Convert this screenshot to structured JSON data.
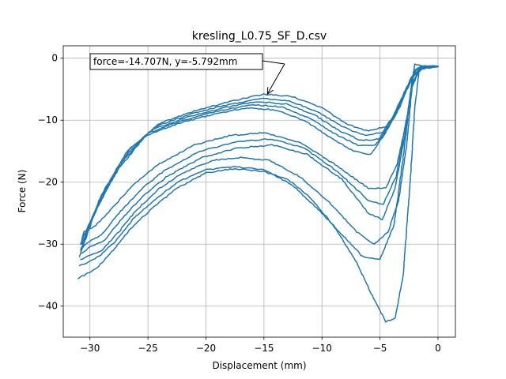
{
  "chart_data": {
    "type": "line",
    "title": "kresling_L0.75_SF_D.csv",
    "xlabel": "Displacement (mm)",
    "ylabel": "Force (N)",
    "xlim": [
      -32.3,
      1.5
    ],
    "ylim": [
      -45,
      2
    ],
    "xticks": [
      -30,
      -25,
      -20,
      -15,
      -10,
      -5,
      0
    ],
    "yticks": [
      0,
      -10,
      -20,
      -30,
      -40
    ],
    "grid": true,
    "color": "#1f77b4",
    "annotation": {
      "text": "force=-14.707N, y=-5.792mm",
      "point_x": -14.707,
      "point_y": -5.792
    },
    "series": [
      {
        "points": [
          [
            0,
            -1.3
          ],
          [
            -1,
            -1.3
          ],
          [
            -1.8,
            -1.6
          ],
          [
            -2.4,
            -3.5
          ],
          [
            -3.3,
            -8
          ],
          [
            -4.5,
            -11
          ],
          [
            -6,
            -11.8
          ],
          [
            -8,
            -10.5
          ],
          [
            -10,
            -8
          ],
          [
            -12.5,
            -6.2
          ],
          [
            -15,
            -5.8
          ],
          [
            -18,
            -7
          ],
          [
            -21,
            -8.5
          ],
          [
            -24,
            -10.5
          ],
          [
            -26.5,
            -14.5
          ],
          [
            -28.5,
            -21
          ],
          [
            -30.5,
            -28.5
          ],
          [
            -30.8,
            -30
          ]
        ]
      },
      {
        "points": [
          [
            -30.8,
            -30
          ],
          [
            -30.5,
            -28
          ],
          [
            -29.5,
            -27
          ],
          [
            -28,
            -24
          ],
          [
            -26,
            -20
          ],
          [
            -24,
            -17
          ],
          [
            -21,
            -14
          ],
          [
            -18,
            -12.5
          ],
          [
            -15,
            -12
          ],
          [
            -12,
            -13.5
          ],
          [
            -9,
            -17
          ],
          [
            -6,
            -21
          ],
          [
            -4.5,
            -21
          ],
          [
            -3.5,
            -17
          ],
          [
            -2.5,
            -8
          ],
          [
            -2,
            -1
          ],
          [
            -1.2,
            -1.3
          ],
          [
            0,
            -1.3
          ]
        ]
      },
      {
        "points": [
          [
            0,
            -1.3
          ],
          [
            -1.1,
            -1.4
          ],
          [
            -1.9,
            -2
          ],
          [
            -2.6,
            -4.5
          ],
          [
            -3.6,
            -9
          ],
          [
            -4.8,
            -12
          ],
          [
            -6.3,
            -12.5
          ],
          [
            -8.3,
            -11
          ],
          [
            -10.3,
            -8.7
          ],
          [
            -12.8,
            -6.9
          ],
          [
            -15.3,
            -6.5
          ],
          [
            -18.3,
            -7.6
          ],
          [
            -21.3,
            -9
          ],
          [
            -24.3,
            -11
          ],
          [
            -26.8,
            -15
          ],
          [
            -28.8,
            -21.5
          ],
          [
            -30.6,
            -29
          ]
        ]
      },
      {
        "points": [
          [
            -30.6,
            -30.5
          ],
          [
            -30,
            -29.5
          ],
          [
            -29,
            -28.5
          ],
          [
            -27.5,
            -25
          ],
          [
            -25.5,
            -21
          ],
          [
            -23.5,
            -18
          ],
          [
            -20.5,
            -15
          ],
          [
            -17.5,
            -13.5
          ],
          [
            -14.5,
            -13
          ],
          [
            -11.5,
            -14.5
          ],
          [
            -8.5,
            -18.5
          ],
          [
            -6,
            -23
          ],
          [
            -4.7,
            -23.5
          ],
          [
            -3.6,
            -19
          ],
          [
            -2.7,
            -10
          ],
          [
            -2.1,
            -2
          ],
          [
            -1.3,
            -1.3
          ],
          [
            0,
            -1.3
          ]
        ]
      },
      {
        "points": [
          [
            0,
            -1.3
          ],
          [
            -1.2,
            -1.5
          ],
          [
            -2,
            -2.5
          ],
          [
            -2.8,
            -5.5
          ],
          [
            -3.9,
            -10
          ],
          [
            -5.1,
            -13
          ],
          [
            -6.6,
            -13.3
          ],
          [
            -8.6,
            -11.6
          ],
          [
            -10.6,
            -9.2
          ],
          [
            -13.1,
            -7.4
          ],
          [
            -15.6,
            -7
          ],
          [
            -18.6,
            -8
          ],
          [
            -21.6,
            -9.5
          ],
          [
            -24.6,
            -11.5
          ],
          [
            -27.1,
            -16
          ],
          [
            -29,
            -22
          ],
          [
            -30.7,
            -30
          ]
        ]
      },
      {
        "points": [
          [
            -30.7,
            -31.5
          ],
          [
            -30,
            -30.5
          ],
          [
            -28.8,
            -29.5
          ],
          [
            -27.3,
            -26
          ],
          [
            -25.3,
            -22
          ],
          [
            -23.3,
            -19
          ],
          [
            -20.3,
            -16
          ],
          [
            -17.3,
            -14.5
          ],
          [
            -14.3,
            -14
          ],
          [
            -11.3,
            -15.5
          ],
          [
            -8.3,
            -19.5
          ],
          [
            -6,
            -25
          ],
          [
            -4.8,
            -26
          ],
          [
            -3.7,
            -21
          ],
          [
            -2.8,
            -12
          ],
          [
            -2.2,
            -3
          ],
          [
            -1.4,
            -1.3
          ],
          [
            0,
            -1.3
          ]
        ]
      },
      {
        "points": [
          [
            0,
            -1.3
          ],
          [
            -1.3,
            -1.6
          ],
          [
            -2.2,
            -3
          ],
          [
            -3.1,
            -6.5
          ],
          [
            -4.2,
            -11
          ],
          [
            -5.4,
            -14
          ],
          [
            -6.9,
            -14
          ],
          [
            -8.9,
            -12.2
          ],
          [
            -10.9,
            -9.8
          ],
          [
            -13.4,
            -7.9
          ],
          [
            -15.9,
            -7.5
          ],
          [
            -18.9,
            -8.5
          ],
          [
            -21.9,
            -10
          ],
          [
            -24.9,
            -12
          ],
          [
            -27.4,
            -17
          ],
          [
            -29.2,
            -23
          ],
          [
            -30.8,
            -31
          ]
        ]
      },
      {
        "points": [
          [
            -30.8,
            -32.5
          ],
          [
            -30.2,
            -32
          ],
          [
            -29,
            -31
          ],
          [
            -27.5,
            -28
          ],
          [
            -26,
            -24.5
          ],
          [
            -24,
            -21
          ],
          [
            -22,
            -18.5
          ],
          [
            -19.5,
            -16.5
          ],
          [
            -17,
            -16
          ],
          [
            -14.5,
            -16.5
          ],
          [
            -12,
            -19
          ],
          [
            -9.5,
            -23
          ],
          [
            -7,
            -28
          ],
          [
            -5.5,
            -30
          ],
          [
            -4.3,
            -28
          ],
          [
            -3.4,
            -23
          ],
          [
            -2.7,
            -14
          ],
          [
            -2.2,
            -4
          ],
          [
            -1.4,
            -1.3
          ],
          [
            0,
            -1.3
          ]
        ]
      },
      {
        "points": [
          [
            0,
            -1.3
          ],
          [
            -1.4,
            -1.7
          ],
          [
            -2.4,
            -3.5
          ],
          [
            -3.4,
            -7.5
          ],
          [
            -4.5,
            -12
          ],
          [
            -5.8,
            -15.5
          ],
          [
            -7.3,
            -15
          ],
          [
            -9.3,
            -12.8
          ],
          [
            -11.3,
            -10.3
          ],
          [
            -13.8,
            -8.4
          ],
          [
            -16.3,
            -8
          ],
          [
            -19.3,
            -9
          ],
          [
            -22.3,
            -10.5
          ],
          [
            -25.2,
            -12.5
          ],
          [
            -27.6,
            -18
          ],
          [
            -29.4,
            -24
          ],
          [
            -30.9,
            -32
          ]
        ]
      },
      {
        "points": [
          [
            -30.9,
            -33.5
          ],
          [
            -30.3,
            -33
          ],
          [
            -29.2,
            -32
          ],
          [
            -27.8,
            -29.5
          ],
          [
            -26.3,
            -26
          ],
          [
            -24.5,
            -23
          ],
          [
            -22.5,
            -20
          ],
          [
            -20,
            -18
          ],
          [
            -17.5,
            -17.5
          ],
          [
            -15,
            -18
          ],
          [
            -12.5,
            -20.5
          ],
          [
            -10,
            -25
          ],
          [
            -8,
            -29
          ],
          [
            -6.5,
            -32
          ],
          [
            -5,
            -32.5
          ],
          [
            -3.8,
            -27
          ],
          [
            -3,
            -16
          ],
          [
            -2.3,
            -5
          ],
          [
            -1.5,
            -1.3
          ],
          [
            0,
            -1.3
          ]
        ]
      },
      {
        "points": [
          [
            -31,
            -35.5
          ],
          [
            -30.5,
            -35
          ],
          [
            -29.5,
            -34
          ],
          [
            -28,
            -31
          ],
          [
            -26.5,
            -27.5
          ],
          [
            -24.5,
            -24
          ],
          [
            -22.5,
            -21
          ],
          [
            -20,
            -18.5
          ],
          [
            -17.5,
            -17.8
          ],
          [
            -15,
            -18.3
          ],
          [
            -13,
            -19.5
          ],
          [
            -11,
            -22.5
          ],
          [
            -9,
            -27
          ],
          [
            -7,
            -33
          ],
          [
            -5.5,
            -39
          ],
          [
            -4.5,
            -42.5
          ],
          [
            -3.7,
            -42
          ],
          [
            -3,
            -35
          ],
          [
            -2.4,
            -20
          ],
          [
            -2,
            -8
          ],
          [
            -1.6,
            -1.5
          ],
          [
            0,
            -1.3
          ]
        ]
      }
    ]
  }
}
